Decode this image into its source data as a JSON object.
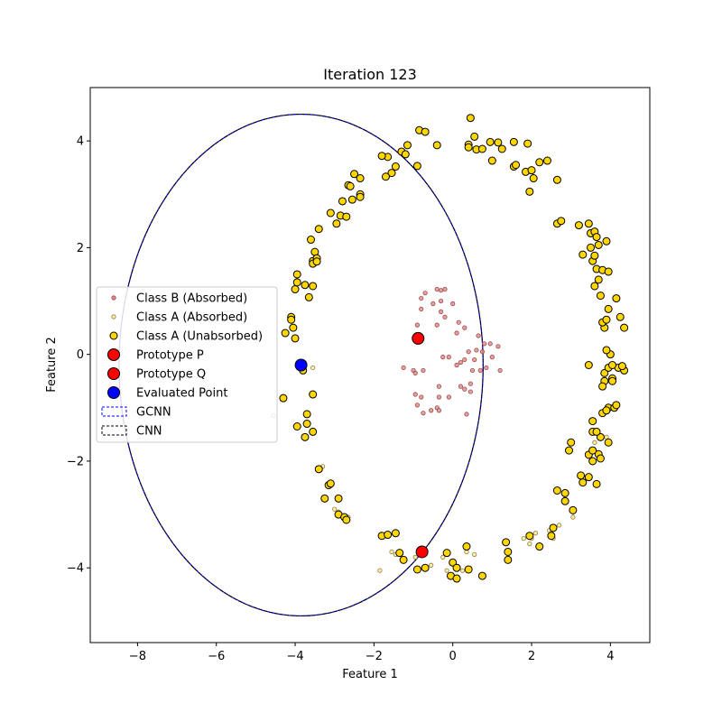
{
  "chart_data": {
    "type": "scatter",
    "title": "Iteration 123",
    "xlabel": "Feature 1",
    "ylabel": "Feature 2",
    "xlim": [
      -9.2,
      5.0
    ],
    "ylim": [
      -5.4,
      5.0
    ],
    "xticks": [
      -8,
      -6,
      -4,
      -2,
      0,
      2,
      4
    ],
    "yticks": [
      -4,
      -2,
      0,
      2,
      4
    ],
    "xtick_labels": [
      "−8",
      "−6",
      "−4",
      "−2",
      "0",
      "2",
      "4"
    ],
    "ytick_labels": [
      "−4",
      "−2",
      "0",
      "2",
      "4"
    ],
    "grid": false,
    "legend_position": "center-left",
    "legend": [
      {
        "label": "Class B (Absorbed)",
        "marker": "small-dot",
        "color": "#e08a8a",
        "edge": "#9a4a4a"
      },
      {
        "label": "Class A (Absorbed)",
        "marker": "small-dot",
        "color": "#fff0b0",
        "edge": "#8c7a3a"
      },
      {
        "label": "Class A (Unabsorbed)",
        "marker": "dot",
        "color": "#ffd700",
        "edge": "#000000"
      },
      {
        "label": "Prototype P",
        "marker": "large-dot",
        "color": "#ff0000",
        "edge": "#000000"
      },
      {
        "label": "Prototype Q",
        "marker": "large-dot",
        "color": "#ff0000",
        "edge": "#000000"
      },
      {
        "label": "Evaluated Point",
        "marker": "large-dot",
        "color": "#0000ff",
        "edge": "#000000"
      },
      {
        "label": "GCNN",
        "marker": "dashed-box",
        "color": "#0000ff"
      },
      {
        "label": "CNN",
        "marker": "dashed-box",
        "color": "#000000"
      }
    ],
    "ellipses": [
      {
        "name": "GCNN",
        "cx": -3.85,
        "cy": -0.2,
        "rx": 4.62,
        "ry": 4.7,
        "color": "#0000ff",
        "style": "dashed"
      },
      {
        "name": "CNN",
        "cx": -3.85,
        "cy": -0.2,
        "rx": 4.62,
        "ry": 4.7,
        "color": "#000000",
        "style": "dashed"
      }
    ],
    "prototype_p": {
      "x": -0.88,
      "y": 0.3
    },
    "prototype_q": {
      "x": -0.78,
      "y": -3.7
    },
    "evaluated_point": {
      "x": -3.85,
      "y": -0.2
    },
    "class_b_absorbed": [
      [
        -0.8,
        1.05
      ],
      [
        -0.7,
        1.15
      ],
      [
        -0.4,
        1.22
      ],
      [
        -0.3,
        1.2
      ],
      [
        -0.2,
        1.22
      ],
      [
        -0.8,
        0.85
      ],
      [
        -0.5,
        0.95
      ],
      [
        -0.3,
        1.0
      ],
      [
        0.0,
        0.95
      ],
      [
        -0.2,
        0.7
      ],
      [
        0.15,
        0.6
      ],
      [
        -0.9,
        0.55
      ],
      [
        -0.4,
        0.55
      ],
      [
        0.3,
        0.5
      ],
      [
        -0.3,
        0.8
      ],
      [
        0.1,
        0.4
      ],
      [
        0.65,
        0.35
      ],
      [
        0.8,
        0.2
      ],
      [
        0.4,
        0.05
      ],
      [
        0.6,
        0.08
      ],
      [
        0.75,
        0.05
      ],
      [
        0.55,
        -0.1
      ],
      [
        -0.25,
        -0.05
      ],
      [
        -0.1,
        -0.05
      ],
      [
        0.7,
        -0.3
      ],
      [
        0.3,
        -0.1
      ],
      [
        0.1,
        -0.2
      ],
      [
        0.2,
        -0.15
      ],
      [
        -1.25,
        -0.25
      ],
      [
        -1.0,
        -0.3
      ],
      [
        -0.95,
        -0.35
      ],
      [
        -0.75,
        -0.3
      ],
      [
        0.5,
        -0.3
      ],
      [
        1.2,
        -0.3
      ],
      [
        0.45,
        -0.55
      ],
      [
        0.2,
        -0.6
      ],
      [
        -0.35,
        -0.6
      ],
      [
        -0.1,
        -0.8
      ],
      [
        -0.95,
        -0.75
      ],
      [
        -0.8,
        -0.8
      ],
      [
        -0.35,
        -0.8
      ],
      [
        0.3,
        -0.65
      ],
      [
        0.45,
        -0.7
      ],
      [
        -0.9,
        -0.95
      ],
      [
        -0.4,
        -1.0
      ],
      [
        -0.35,
        -1.05
      ],
      [
        -0.55,
        -1.05
      ],
      [
        -0.75,
        -1.1
      ],
      [
        0.35,
        -1.12
      ],
      [
        0.95,
        0.2
      ],
      [
        1.15,
        0.15
      ],
      [
        1.0,
        -0.05
      ],
      [
        0.85,
        -0.25
      ]
    ],
    "class_a_absorbed": [
      [
        -4.55,
        -1.15
      ],
      [
        -3.8,
        -0.3
      ],
      [
        -3.3,
        -2.1
      ],
      [
        -3.0,
        -2.9
      ],
      [
        -2.65,
        -3.05
      ],
      [
        -1.85,
        -4.05
      ],
      [
        -1.55,
        -3.7
      ],
      [
        -1.45,
        -3.75
      ],
      [
        -0.95,
        -3.8
      ],
      [
        -0.55,
        -3.95
      ],
      [
        0.35,
        -3.7
      ],
      [
        -0.15,
        -4.05
      ],
      [
        0.25,
        -4.05
      ],
      [
        2.55,
        -3.45
      ],
      [
        2.7,
        -3.2
      ],
      [
        2.45,
        -3.3
      ],
      [
        3.05,
        -3.05
      ],
      [
        2.5,
        -3.35
      ],
      [
        2.0,
        -3.45
      ],
      [
        1.95,
        -3.55
      ],
      [
        3.6,
        -1.65
      ],
      [
        3.9,
        -1.55
      ],
      [
        1.8,
        -3.45
      ],
      [
        2.1,
        -3.35
      ],
      [
        -2.9,
        -2.95
      ],
      [
        -3.55,
        -0.25
      ],
      [
        -0.25,
        -3.8
      ],
      [
        0.55,
        -3.75
      ]
    ],
    "class_a_unabsorbed": [
      [
        0.45,
        4.43
      ],
      [
        0.55,
        4.08
      ],
      [
        0.4,
        3.93
      ],
      [
        0.6,
        3.84
      ],
      [
        0.4,
        3.88
      ],
      [
        0.75,
        3.85
      ],
      [
        0.95,
        3.98
      ],
      [
        1.15,
        3.97
      ],
      [
        1.25,
        3.85
      ],
      [
        1.55,
        3.98
      ],
      [
        1.9,
        3.95
      ],
      [
        1.0,
        3.63
      ],
      [
        1.55,
        3.52
      ],
      [
        1.85,
        3.42
      ],
      [
        2.0,
        3.45
      ],
      [
        2.2,
        3.6
      ],
      [
        2.4,
        3.63
      ],
      [
        1.6,
        3.55
      ],
      [
        2.05,
        3.3
      ],
      [
        1.95,
        3.05
      ],
      [
        2.65,
        3.27
      ],
      [
        -0.85,
        4.2
      ],
      [
        -0.7,
        4.17
      ],
      [
        -0.4,
        3.92
      ],
      [
        -1.15,
        3.92
      ],
      [
        -1.3,
        3.8
      ],
      [
        -1.2,
        3.75
      ],
      [
        -1.65,
        3.7
      ],
      [
        -1.8,
        3.72
      ],
      [
        -1.45,
        3.52
      ],
      [
        -1.55,
        3.4
      ],
      [
        -1.7,
        3.33
      ],
      [
        -0.9,
        3.53
      ],
      [
        -2.5,
        3.38
      ],
      [
        -2.35,
        3.3
      ],
      [
        -2.65,
        3.17
      ],
      [
        -2.6,
        3.15
      ],
      [
        -2.35,
        3.0
      ],
      [
        -2.35,
        2.95
      ],
      [
        -2.55,
        2.9
      ],
      [
        -2.8,
        2.87
      ],
      [
        -3.1,
        2.65
      ],
      [
        -2.85,
        2.6
      ],
      [
        -2.7,
        2.58
      ],
      [
        -2.95,
        2.45
      ],
      [
        -3.4,
        2.35
      ],
      [
        -3.6,
        2.15
      ],
      [
        -3.5,
        1.92
      ],
      [
        -3.55,
        1.75
      ],
      [
        -3.45,
        1.8
      ],
      [
        -3.55,
        1.7
      ],
      [
        -3.45,
        1.74
      ],
      [
        -3.95,
        1.5
      ],
      [
        -3.95,
        1.35
      ],
      [
        -4.0,
        1.22
      ],
      [
        -3.75,
        1.3
      ],
      [
        -3.55,
        1.28
      ],
      [
        -3.65,
        1.07
      ],
      [
        -4.1,
        0.7
      ],
      [
        -4.1,
        0.65
      ],
      [
        -4.05,
        0.5
      ],
      [
        -4.25,
        0.4
      ],
      [
        -4.0,
        0.3
      ],
      [
        -3.8,
        -0.3
      ],
      [
        -3.55,
        -0.75
      ],
      [
        -4.3,
        -0.82
      ],
      [
        -3.7,
        -1.12
      ],
      [
        -3.7,
        -1.3
      ],
      [
        -3.95,
        -1.35
      ],
      [
        -3.55,
        -1.45
      ],
      [
        -3.75,
        -1.55
      ],
      [
        -3.4,
        -2.15
      ],
      [
        -3.15,
        -2.45
      ],
      [
        -3.1,
        -2.42
      ],
      [
        -2.9,
        -2.7
      ],
      [
        -3.25,
        -2.7
      ],
      [
        -2.9,
        -3.0
      ],
      [
        -2.75,
        -3.05
      ],
      [
        -2.7,
        -3.1
      ],
      [
        -1.8,
        -3.4
      ],
      [
        -1.65,
        -3.38
      ],
      [
        -1.45,
        -3.35
      ],
      [
        -1.35,
        -3.72
      ],
      [
        -1.25,
        -3.85
      ],
      [
        -0.9,
        -4.03
      ],
      [
        -0.7,
        -4.0
      ],
      [
        -0.15,
        -3.72
      ],
      [
        0.35,
        -3.6
      ],
      [
        0.0,
        -3.9
      ],
      [
        0.1,
        -4.0
      ],
      [
        -0.05,
        -4.15
      ],
      [
        0.1,
        -4.2
      ],
      [
        0.4,
        -4.03
      ],
      [
        0.75,
        -4.15
      ],
      [
        1.35,
        -3.52
      ],
      [
        1.4,
        -3.7
      ],
      [
        1.4,
        -3.85
      ],
      [
        1.95,
        -3.4
      ],
      [
        2.2,
        -3.6
      ],
      [
        2.5,
        -3.4
      ],
      [
        2.55,
        -3.25
      ],
      [
        2.65,
        -2.55
      ],
      [
        2.85,
        -2.6
      ],
      [
        2.85,
        -2.75
      ],
      [
        3.05,
        -2.92
      ],
      [
        3.3,
        -2.4
      ],
      [
        3.25,
        -2.27
      ],
      [
        3.45,
        -2.3
      ],
      [
        3.55,
        -2.0
      ],
      [
        3.65,
        -2.43
      ],
      [
        3.7,
        -1.87
      ],
      [
        3.75,
        -1.95
      ],
      [
        3.45,
        -1.88
      ],
      [
        3.55,
        -1.8
      ],
      [
        3.75,
        -1.55
      ],
      [
        3.95,
        -1.65
      ],
      [
        3.55,
        -1.45
      ],
      [
        3.65,
        -1.45
      ],
      [
        3.55,
        -1.25
      ],
      [
        3.95,
        -1.0
      ],
      [
        3.8,
        -1.1
      ],
      [
        3.9,
        -1.05
      ],
      [
        4.1,
        -1.0
      ],
      [
        4.15,
        -0.95
      ],
      [
        2.95,
        -1.8
      ],
      [
        3.0,
        -1.65
      ],
      [
        3.85,
        -0.35
      ],
      [
        3.85,
        -0.5
      ],
      [
        4.05,
        -0.45
      ],
      [
        3.8,
        -0.6
      ],
      [
        4.05,
        -0.5
      ],
      [
        3.95,
        -0.25
      ],
      [
        4.2,
        -0.25
      ],
      [
        4.35,
        -0.3
      ],
      [
        4.3,
        -0.22
      ],
      [
        3.45,
        -0.2
      ],
      [
        4.05,
        -0.2
      ],
      [
        4.0,
        0.0
      ],
      [
        3.9,
        0.08
      ],
      [
        3.85,
        0.5
      ],
      [
        3.8,
        0.6
      ],
      [
        3.9,
        0.65
      ],
      [
        4.25,
        0.7
      ],
      [
        4.35,
        0.5
      ],
      [
        3.95,
        0.85
      ],
      [
        4.15,
        1.05
      ],
      [
        3.75,
        1.1
      ],
      [
        3.6,
        1.28
      ],
      [
        3.7,
        1.4
      ],
      [
        3.65,
        1.6
      ],
      [
        3.8,
        1.58
      ],
      [
        3.95,
        1.55
      ],
      [
        3.55,
        1.75
      ],
      [
        3.6,
        1.85
      ],
      [
        3.3,
        1.87
      ],
      [
        3.5,
        2.0
      ],
      [
        3.7,
        2.05
      ],
      [
        3.9,
        2.12
      ],
      [
        3.5,
        2.27
      ],
      [
        3.6,
        2.3
      ],
      [
        3.65,
        2.2
      ],
      [
        3.45,
        2.45
      ],
      [
        3.2,
        2.42
      ],
      [
        2.65,
        2.45
      ],
      [
        2.75,
        2.5
      ]
    ]
  }
}
